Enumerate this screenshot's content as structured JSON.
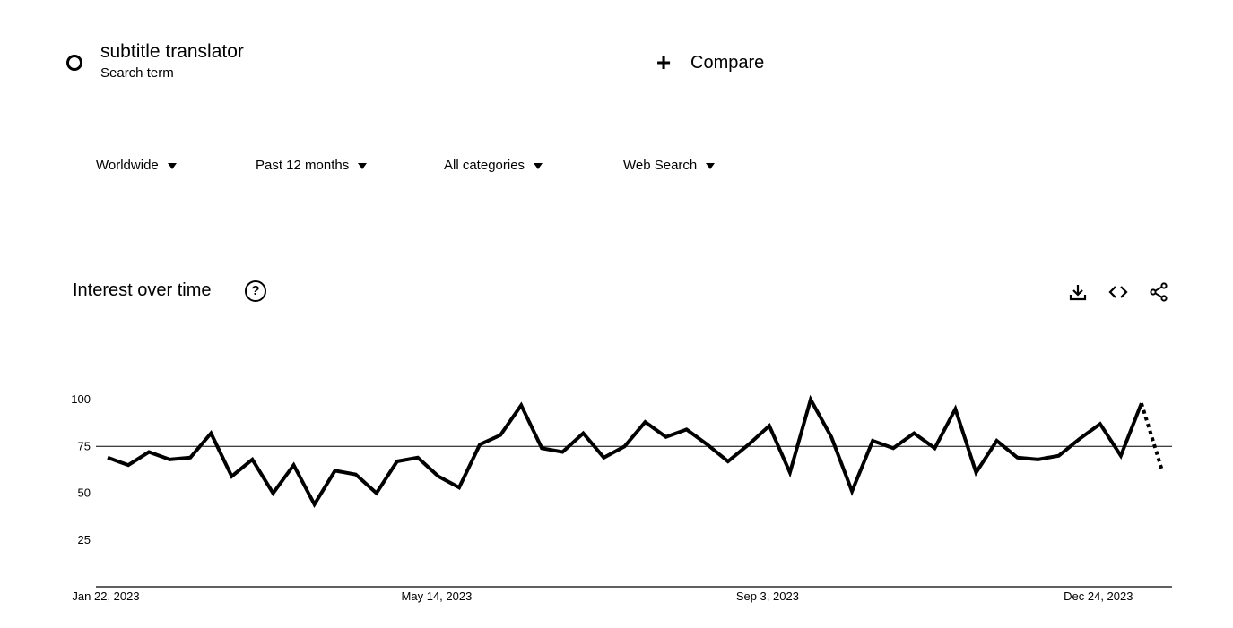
{
  "term": {
    "title": "subtitle translator",
    "subtitle": "Search term"
  },
  "compare": {
    "label": "Compare",
    "icon": "plus-icon"
  },
  "filters": [
    {
      "label": "Worldwide"
    },
    {
      "label": "Past 12 months"
    },
    {
      "label": "All categories"
    },
    {
      "label": "Web Search"
    }
  ],
  "section": {
    "title": "Interest over time",
    "icons": [
      "help-icon",
      "download-icon",
      "embed-icon",
      "share-icon"
    ]
  },
  "chart_data": {
    "type": "line",
    "title": "",
    "xlabel": "",
    "ylabel": "",
    "ylim": [
      0,
      100
    ],
    "yticks": [
      25,
      50,
      75,
      100
    ],
    "xtick_labels": [
      "Jan 22, 2023",
      "May 14, 2023",
      "Sep 3, 2023",
      "Dec 24, 2023"
    ],
    "xtick_indices": [
      0,
      16,
      32,
      48
    ],
    "gridlines": [
      75
    ],
    "series": [
      {
        "values": [
          69,
          65,
          72,
          68,
          69,
          82,
          59,
          68,
          50,
          65,
          44,
          62,
          60,
          50,
          67,
          69,
          59,
          53,
          76,
          81,
          97,
          74,
          72,
          82,
          69,
          75,
          88,
          80,
          84,
          76,
          67,
          76,
          86,
          61,
          100,
          80,
          51,
          78,
          74,
          82,
          74,
          95,
          61,
          78,
          69,
          68,
          70,
          79,
          87,
          70,
          98,
          62
        ],
        "partial_from_index": 50
      }
    ],
    "colors": {
      "line": "#000000",
      "grid": "#000000"
    }
  }
}
